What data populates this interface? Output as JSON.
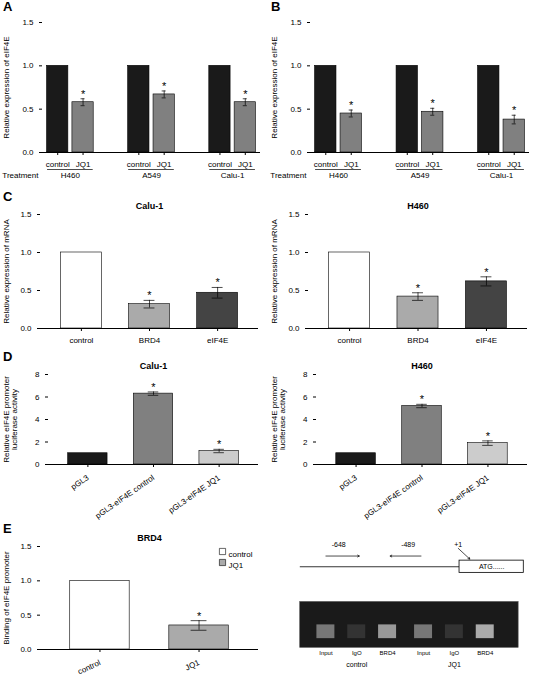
{
  "chart_data": [
    {
      "type": "bar",
      "panel_label": "A",
      "xlabel": "Treatment",
      "ylabel": "Relative expression of eIF4E",
      "categories": [
        "H460",
        "A549",
        "Calu-1"
      ],
      "series": [
        {
          "name": "control",
          "color": "#1a1a1a",
          "values": [
            1.0,
            1.0,
            1.0
          ],
          "errors": [
            0.0,
            0.0,
            0.0
          ]
        },
        {
          "name": "JQ1",
          "color": "#808080",
          "values": [
            0.58,
            0.67,
            0.58
          ],
          "errors": [
            0.04,
            0.04,
            0.04
          ]
        }
      ],
      "ylim": [
        0,
        1.5
      ],
      "yticks": [
        {
          "value": 0.0,
          "label": "0.0"
        },
        {
          "value": 0.5,
          "label": "0.5"
        },
        {
          "value": 1.0,
          "label": "1.0"
        },
        {
          "value": 1.5,
          "label": "1.5"
        }
      ],
      "annotations": [
        {
          "category": "H460",
          "series": "JQ1",
          "text": "*"
        },
        {
          "category": "A549",
          "series": "JQ1",
          "text": "*"
        },
        {
          "category": "Calu-1",
          "series": "JQ1",
          "text": "*"
        }
      ]
    },
    {
      "type": "bar",
      "panel_label": "B",
      "xlabel": "Treatment",
      "ylabel": "Relative expression of eIF4E",
      "categories": [
        "H460",
        "A549",
        "Calu-1"
      ],
      "series": [
        {
          "name": "control",
          "color": "#1a1a1a",
          "values": [
            1.0,
            1.0,
            1.0
          ],
          "errors": [
            0.0,
            0.0,
            0.0
          ]
        },
        {
          "name": "JQ1",
          "color": "#808080",
          "values": [
            0.45,
            0.47,
            0.38
          ],
          "errors": [
            0.04,
            0.04,
            0.05
          ]
        }
      ],
      "ylim": [
        0,
        1.5
      ],
      "yticks": [
        {
          "value": 0.0,
          "label": "0.0"
        },
        {
          "value": 0.5,
          "label": "0.5"
        },
        {
          "value": 1.0,
          "label": "1.0"
        },
        {
          "value": 1.5,
          "label": "1.5"
        }
      ],
      "annotations": [
        {
          "category": "H460",
          "series": "JQ1",
          "text": "*"
        },
        {
          "category": "A549",
          "series": "JQ1",
          "text": "*"
        },
        {
          "category": "Calu-1",
          "series": "JQ1",
          "text": "*"
        }
      ]
    },
    {
      "type": "bar",
      "panel_label": "C",
      "title": "Calu-1",
      "ylabel": "Relative expression of mRNA",
      "categories": [
        "control",
        "BRD4",
        "eIF4E"
      ],
      "values": [
        1.0,
        0.32,
        0.47
      ],
      "errors": [
        0.0,
        0.05,
        0.07
      ],
      "colors": [
        "#ffffff",
        "#aaaaaa",
        "#444444"
      ],
      "ylim": [
        0,
        1.5
      ],
      "yticks": [
        {
          "value": 0.0,
          "label": "0.0"
        },
        {
          "value": 0.5,
          "label": "0.5"
        },
        {
          "value": 1.0,
          "label": "1.0"
        },
        {
          "value": 1.5,
          "label": "1.5"
        }
      ],
      "annotations": [
        {
          "category": "BRD4",
          "text": "*"
        },
        {
          "category": "eIF4E",
          "text": "*"
        }
      ]
    },
    {
      "type": "bar",
      "title": "H460",
      "ylabel": "Relative expression of mRNA",
      "categories": [
        "control",
        "BRD4",
        "eIF4E"
      ],
      "values": [
        1.0,
        0.42,
        0.62
      ],
      "errors": [
        0.0,
        0.05,
        0.06
      ],
      "colors": [
        "#ffffff",
        "#aaaaaa",
        "#444444"
      ],
      "ylim": [
        0,
        1.5
      ],
      "yticks": [
        {
          "value": 0.0,
          "label": "0.0"
        },
        {
          "value": 0.5,
          "label": "0.5"
        },
        {
          "value": 1.0,
          "label": "1.0"
        },
        {
          "value": 1.5,
          "label": "1.5"
        }
      ],
      "annotations": [
        {
          "category": "BRD4",
          "text": "*"
        },
        {
          "category": "eIF4E",
          "text": "*"
        }
      ]
    },
    {
      "type": "bar",
      "panel_label": "D",
      "title": "Calu-1",
      "ylabel": "Relative eIF4E promoter\nluciferase activity",
      "categories": [
        "pGL3",
        "pGL3-eIF4E control",
        "pGL3-eIF4E JQ1"
      ],
      "values": [
        1.0,
        6.3,
        1.2
      ],
      "errors": [
        0.0,
        0.15,
        0.15
      ],
      "colors": [
        "#1a1a1a",
        "#808080",
        "#cccccc"
      ],
      "ylim": [
        0,
        8
      ],
      "yticks": [
        0,
        2,
        4,
        6,
        8
      ],
      "annotations": [
        {
          "category": "pGL3-eIF4E control",
          "text": "*"
        },
        {
          "category": "pGL3-eIF4E JQ1",
          "text": "*"
        }
      ]
    },
    {
      "type": "bar",
      "title": "H460",
      "ylabel": "Relative eIF4E promoter\nluciferase activity",
      "categories": [
        "pGL3",
        "pGL3-eIF4E control",
        "pGL3-eIF4E JQ1"
      ],
      "values": [
        1.0,
        5.2,
        1.9
      ],
      "errors": [
        0.0,
        0.15,
        0.2
      ],
      "colors": [
        "#1a1a1a",
        "#808080",
        "#cccccc"
      ],
      "ylim": [
        0,
        8
      ],
      "yticks": [
        0,
        2,
        4,
        6,
        8
      ],
      "annotations": [
        {
          "category": "pGL3-eIF4E control",
          "text": "*"
        },
        {
          "category": "pGL3-eIF4E JQ1",
          "text": "*"
        }
      ]
    },
    {
      "type": "bar",
      "panel_label": "E",
      "title": "BRD4",
      "ylabel": "Binding of eIF4E promoter",
      "categories": [
        "control",
        "JQ1"
      ],
      "values": [
        1.0,
        0.35
      ],
      "errors": [
        0.0,
        0.07
      ],
      "colors": [
        "#ffffff",
        "#aaaaaa"
      ],
      "ylim": [
        0,
        1.5
      ],
      "yticks": [
        {
          "value": 0.0,
          "label": "0.0"
        },
        {
          "value": 0.5,
          "label": "0.5"
        },
        {
          "value": 1.0,
          "label": "1.0"
        },
        {
          "value": 1.5,
          "label": "1.5"
        }
      ],
      "legend": "upper right",
      "annotations": [
        {
          "category": "JQ1",
          "text": "*"
        }
      ]
    },
    {
      "type": "diagram",
      "gene": {
        "start": "+1",
        "box": "ATG......",
        "primers": [
          "-648",
          "-489"
        ]
      },
      "gel": {
        "color": "#1a1a1a",
        "lanes": [
          "Input",
          "IgO",
          "BRD4",
          "Input",
          "IgO",
          "BRD4"
        ],
        "colors": [
          "#777777",
          "#333333",
          "#999999",
          "#777777",
          "#333333",
          "#aaaaaa"
        ],
        "groups": [
          "control",
          "JQ1"
        ]
      }
    }
  ]
}
